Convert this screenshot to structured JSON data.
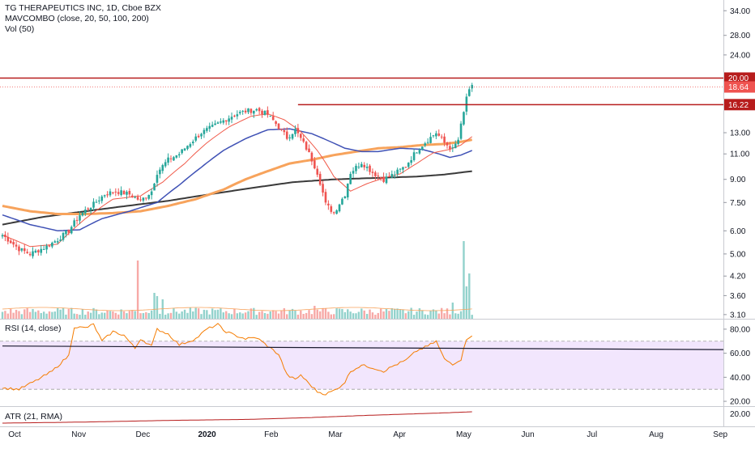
{
  "colors": {
    "up": "#26a69a",
    "down": "#ef5350",
    "ma20": "#f05a4a",
    "ma50": "#3f51b5",
    "ma100": "#f7a35c",
    "ma200": "#3a3a3a",
    "level_line": "#b71c1c",
    "rsi_line": "#f57c00",
    "rsi_band": "#e9d6fb",
    "atr_line": "#b71c1c",
    "axis_text": "#131722"
  },
  "legend": {
    "symbol": "TG THERAPEUTICS INC, 1D, Cboe BZX",
    "indicator": "MAVCOMBO (close, 20, 50, 100, 200)",
    "volume": "Vol (50)",
    "rsi": "RSI (14, close)",
    "atr": "ATR (21, RMA)"
  },
  "chart_data": [
    {
      "name_hint": "price",
      "type": "candlestick",
      "scale": "log",
      "y_ticks": [
        "34.00",
        "28.00",
        "24.00",
        "20.00",
        "18.64",
        "16.22",
        "13.00",
        "11.00",
        "9.00",
        "7.50",
        "6.00",
        "5.00",
        "4.20",
        "3.60",
        "3.10"
      ],
      "y_tick_values": [
        34,
        28,
        24,
        20,
        18.64,
        16.22,
        13,
        11,
        9,
        7.5,
        6,
        5,
        4.2,
        3.6,
        3.1
      ],
      "ylim": [
        3.0,
        37.0
      ],
      "x_ticks": [
        "Oct",
        "Nov",
        "Dec",
        "2020",
        "Feb",
        "Mar",
        "Apr",
        "May",
        "Jun",
        "Jul",
        "Aug",
        "Sep"
      ],
      "horizontal_levels": [
        {
          "value": 20.0,
          "label": "20.00"
        },
        {
          "value": 16.22,
          "label": "16.22"
        }
      ],
      "last_price": {
        "value": 18.64,
        "label": "18.64"
      },
      "close_anchors": [
        [
          0,
          5.8
        ],
        [
          6,
          5.2
        ],
        [
          10,
          5.0
        ],
        [
          16,
          5.3
        ],
        [
          20,
          5.6
        ],
        [
          24,
          6.0
        ],
        [
          28,
          6.8
        ],
        [
          33,
          7.4
        ],
        [
          37,
          8.0
        ],
        [
          41,
          8.2
        ],
        [
          46,
          8.0
        ],
        [
          50,
          7.6
        ],
        [
          54,
          8.2
        ],
        [
          56,
          9.5
        ],
        [
          60,
          10.5
        ],
        [
          64,
          11.0
        ],
        [
          68,
          12.0
        ],
        [
          72,
          13.0
        ],
        [
          76,
          13.6
        ],
        [
          80,
          14.3
        ],
        [
          84,
          15.0
        ],
        [
          88,
          15.4
        ],
        [
          92,
          15.6
        ],
        [
          96,
          15.0
        ],
        [
          100,
          13.6
        ],
        [
          103,
          12.5
        ],
        [
          106,
          13.3
        ],
        [
          110,
          11.5
        ],
        [
          114,
          9.5
        ],
        [
          117,
          7.4
        ],
        [
          120,
          6.9
        ],
        [
          124,
          8.0
        ],
        [
          126,
          9.5
        ],
        [
          130,
          10.3
        ],
        [
          134,
          9.5
        ],
        [
          138,
          9.0
        ],
        [
          142,
          9.4
        ],
        [
          146,
          10.0
        ],
        [
          150,
          11.3
        ],
        [
          154,
          12.3
        ],
        [
          157,
          13.0
        ],
        [
          160,
          12.0
        ],
        [
          163,
          11.4
        ],
        [
          165,
          12.3
        ],
        [
          167,
          15.2
        ],
        [
          168,
          17.3
        ],
        [
          170,
          18.64
        ]
      ],
      "ma_anchors": {
        "ma20": [
          [
            0,
            5.8
          ],
          [
            10,
            5.3
          ],
          [
            20,
            5.4
          ],
          [
            30,
            6.6
          ],
          [
            40,
            7.7
          ],
          [
            50,
            7.9
          ],
          [
            58,
            8.8
          ],
          [
            66,
            10.2
          ],
          [
            74,
            12.0
          ],
          [
            82,
            13.6
          ],
          [
            90,
            14.8
          ],
          [
            96,
            15.1
          ],
          [
            102,
            14.4
          ],
          [
            108,
            13.1
          ],
          [
            114,
            11.3
          ],
          [
            120,
            9.2
          ],
          [
            126,
            8.2
          ],
          [
            132,
            8.7
          ],
          [
            138,
            9.1
          ],
          [
            144,
            9.4
          ],
          [
            150,
            10.2
          ],
          [
            156,
            11.1
          ],
          [
            162,
            11.4
          ],
          [
            166,
            11.8
          ],
          [
            170,
            12.6
          ]
        ],
        "ma50": [
          [
            0,
            6.8
          ],
          [
            10,
            6.3
          ],
          [
            20,
            6.0
          ],
          [
            28,
            6.05
          ],
          [
            36,
            6.6
          ],
          [
            46,
            7.0
          ],
          [
            56,
            7.5
          ],
          [
            64,
            8.6
          ],
          [
            72,
            9.9
          ],
          [
            80,
            11.3
          ],
          [
            88,
            12.4
          ],
          [
            96,
            13.3
          ],
          [
            104,
            13.4
          ],
          [
            112,
            12.9
          ],
          [
            118,
            12.2
          ],
          [
            124,
            11.5
          ],
          [
            130,
            11.2
          ],
          [
            136,
            11.2
          ],
          [
            144,
            11.5
          ],
          [
            152,
            11.4
          ],
          [
            158,
            11.0
          ],
          [
            162,
            10.7
          ],
          [
            166,
            10.9
          ],
          [
            170,
            11.3
          ]
        ],
        "ma100": [
          [
            0,
            7.3
          ],
          [
            10,
            7.0
          ],
          [
            20,
            6.85
          ],
          [
            30,
            6.85
          ],
          [
            40,
            6.9
          ],
          [
            50,
            7.0
          ],
          [
            60,
            7.3
          ],
          [
            70,
            7.7
          ],
          [
            80,
            8.3
          ],
          [
            88,
            9.0
          ],
          [
            96,
            9.6
          ],
          [
            104,
            10.2
          ],
          [
            112,
            10.5
          ],
          [
            120,
            10.9
          ],
          [
            128,
            11.2
          ],
          [
            136,
            11.5
          ],
          [
            144,
            11.6
          ],
          [
            152,
            11.8
          ],
          [
            160,
            11.9
          ],
          [
            166,
            12.1
          ],
          [
            170,
            12.3
          ]
        ],
        "ma200": [
          [
            0,
            6.3
          ],
          [
            15,
            6.7
          ],
          [
            30,
            7.0
          ],
          [
            45,
            7.3
          ],
          [
            60,
            7.6
          ],
          [
            75,
            8.0
          ],
          [
            90,
            8.4
          ],
          [
            105,
            8.8
          ],
          [
            120,
            9.0
          ],
          [
            135,
            9.1
          ],
          [
            150,
            9.2
          ],
          [
            160,
            9.35
          ],
          [
            170,
            9.6
          ]
        ]
      }
    },
    {
      "name_hint": "volume",
      "type": "bar",
      "spikes": [
        [
          49,
          9
        ],
        [
          55,
          4
        ],
        [
          56,
          3.5
        ],
        [
          58,
          3
        ],
        [
          113,
          2
        ],
        [
          163,
          2.5
        ],
        [
          167,
          12
        ],
        [
          168,
          5
        ],
        [
          169,
          7
        ]
      ]
    },
    {
      "name_hint": "rsi",
      "type": "line",
      "y_ticks": [
        "80.00",
        "60.00",
        "40.00",
        "20.00"
      ],
      "y_tick_values": [
        80,
        60,
        40,
        20
      ],
      "ylim": [
        16,
        88
      ],
      "band": [
        30,
        70
      ],
      "anchors": [
        [
          0,
          31
        ],
        [
          6,
          30
        ],
        [
          12,
          37
        ],
        [
          18,
          45
        ],
        [
          24,
          58
        ],
        [
          26,
          82
        ],
        [
          30,
          81
        ],
        [
          33,
          84
        ],
        [
          36,
          70
        ],
        [
          40,
          78
        ],
        [
          44,
          75
        ],
        [
          48,
          64
        ],
        [
          50,
          72
        ],
        [
          54,
          66
        ],
        [
          56,
          80
        ],
        [
          60,
          76
        ],
        [
          64,
          67
        ],
        [
          70,
          72
        ],
        [
          74,
          80
        ],
        [
          78,
          84
        ],
        [
          80,
          79
        ],
        [
          84,
          75
        ],
        [
          88,
          72
        ],
        [
          92,
          73
        ],
        [
          96,
          66
        ],
        [
          100,
          59
        ],
        [
          103,
          42
        ],
        [
          106,
          38
        ],
        [
          108,
          42
        ],
        [
          110,
          37
        ],
        [
          114,
          28
        ],
        [
          117,
          26
        ],
        [
          121,
          30
        ],
        [
          124,
          36
        ],
        [
          126,
          45
        ],
        [
          130,
          50
        ],
        [
          134,
          48
        ],
        [
          138,
          45
        ],
        [
          142,
          50
        ],
        [
          146,
          54
        ],
        [
          150,
          62
        ],
        [
          154,
          66
        ],
        [
          157,
          70
        ],
        [
          160,
          55
        ],
        [
          163,
          51
        ],
        [
          166,
          55
        ],
        [
          168,
          72
        ],
        [
          170,
          75
        ]
      ],
      "trend_line": [
        [
          0,
          66
        ],
        [
          230,
          63
        ]
      ]
    },
    {
      "name_hint": "atr",
      "type": "line",
      "y_ticks": [
        "20.00"
      ],
      "y_tick_values": [
        20
      ],
      "ylim": [
        0,
        30
      ],
      "anchors": [
        [
          0,
          3
        ],
        [
          30,
          5
        ],
        [
          60,
          8
        ],
        [
          90,
          10
        ],
        [
          110,
          13
        ],
        [
          130,
          17
        ],
        [
          160,
          22
        ],
        [
          170,
          24
        ]
      ]
    }
  ]
}
